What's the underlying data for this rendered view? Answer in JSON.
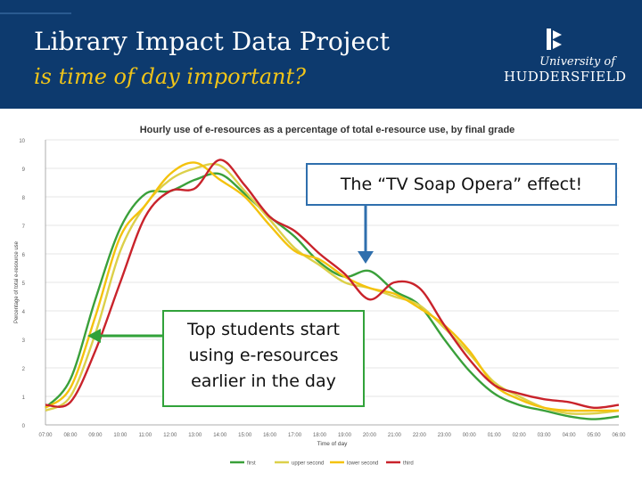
{
  "slide": {
    "title": "Library Impact Data Project",
    "subtitle": "is time of day important?",
    "logo": {
      "line1": "University of",
      "line2": "HUDDERSFIELD",
      "icon": "huddersfield-crest-icon"
    },
    "callouts": {
      "tv": "The “TV Soap Opera” effect!",
      "top_lines": [
        "Top students start",
        "using e-resources",
        "earlier in the day"
      ]
    },
    "colors": {
      "header": "#0d3a6e",
      "subtitle": "#f0c419",
      "tv_box": "#2f6fad",
      "top_box": "#31a23a",
      "arrow_blue": "#2f6fad",
      "arrow_green": "#31a23a"
    }
  },
  "chart_data": {
    "type": "line",
    "title": "Hourly use of e-resources as a percentage of total e-resource use,  by final grade",
    "xlabel": "Time of day",
    "ylabel": "Percentage of total e-resource use",
    "categories": [
      "07:00",
      "08:00",
      "09:00",
      "10:00",
      "11:00",
      "12:00",
      "13:00",
      "14:00",
      "15:00",
      "16:00",
      "17:00",
      "18:00",
      "19:00",
      "20:00",
      "21:00",
      "22:00",
      "23:00",
      "00:00",
      "01:00",
      "02:00",
      "03:00",
      "04:00",
      "05:00",
      "06:00"
    ],
    "ylim": [
      0,
      10
    ],
    "yticks": [
      "0",
      "1",
      "2",
      "3",
      "4",
      "5",
      "6",
      "7",
      "8",
      "9",
      "10"
    ],
    "grid": true,
    "legend_position": "bottom",
    "series": [
      {
        "name": "first",
        "color": "#3aa03a",
        "values": [
          0.6,
          1.6,
          4.4,
          6.9,
          8.1,
          8.2,
          8.6,
          8.8,
          8.1,
          7.3,
          6.6,
          5.7,
          5.2,
          5.4,
          4.7,
          4.2,
          3.0,
          1.9,
          1.1,
          0.7,
          0.5,
          0.3,
          0.2,
          0.3
        ]
      },
      {
        "name": "upper second",
        "color": "#dcd04a",
        "values": [
          0.5,
          1.0,
          3.2,
          6.1,
          7.7,
          8.6,
          9.0,
          9.1,
          8.2,
          7.2,
          6.2,
          5.6,
          5.0,
          4.8,
          4.5,
          4.2,
          3.4,
          2.5,
          1.5,
          1.0,
          0.6,
          0.4,
          0.4,
          0.5
        ]
      },
      {
        "name": "lower second",
        "color": "#f4c20d",
        "values": [
          0.6,
          1.3,
          3.8,
          6.6,
          7.7,
          8.8,
          9.2,
          8.6,
          8.0,
          7.0,
          6.1,
          5.8,
          5.2,
          4.8,
          4.6,
          4.1,
          3.5,
          2.6,
          1.4,
          0.9,
          0.6,
          0.5,
          0.5,
          0.5
        ]
      },
      {
        "name": "third",
        "color": "#c9232b",
        "values": [
          0.7,
          0.8,
          2.6,
          5.0,
          7.3,
          8.2,
          8.3,
          9.3,
          8.4,
          7.3,
          6.8,
          6.0,
          5.3,
          4.4,
          5.0,
          4.8,
          3.5,
          2.3,
          1.4,
          1.1,
          0.9,
          0.8,
          0.6,
          0.7
        ]
      }
    ]
  }
}
